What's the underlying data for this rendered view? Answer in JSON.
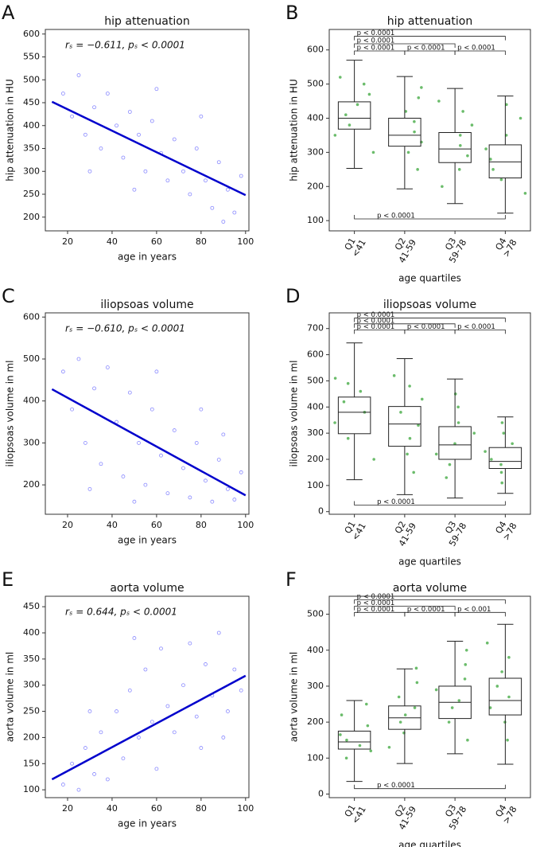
{
  "chart_data": [
    {
      "type": "scatter",
      "panel": "A",
      "title": "hip attenuation",
      "annotation": "rₛ = −0.611, pₛ < 0.0001",
      "xlabel": "age in years",
      "ylabel": "hip attenuation in HU",
      "xlim": [
        10,
        101.5
      ],
      "xticks": [
        20,
        40,
        60,
        80,
        100
      ],
      "ylim": [
        170,
        610
      ],
      "yticks": [
        200,
        250,
        300,
        350,
        400,
        450,
        500,
        550,
        600
      ],
      "color": "#6a6aff",
      "x": [
        18,
        22,
        25,
        28,
        32,
        35,
        38,
        42,
        45,
        48,
        52,
        55,
        58,
        62,
        65,
        68,
        72,
        75,
        78,
        82,
        85,
        88,
        92,
        95,
        98,
        30,
        60,
        80,
        50,
        90
      ],
      "y": [
        470,
        420,
        510,
        380,
        440,
        350,
        470,
        400,
        330,
        430,
        380,
        300,
        410,
        340,
        280,
        370,
        300,
        250,
        350,
        280,
        220,
        320,
        260,
        210,
        290,
        300,
        480,
        420,
        260,
        190
      ],
      "fit": {
        "x": [
          13,
          100
        ],
        "y": [
          452,
          248
        ],
        "color": "#0000cc"
      }
    },
    {
      "type": "box",
      "panel": "B",
      "title": "hip attenuation",
      "xlabel": "age quartiles",
      "ylabel": "hip attenuation in HU",
      "categories": [
        "Q1",
        "Q2",
        "Q3",
        "Q4"
      ],
      "category_sublabels": [
        "<41",
        "41-59",
        "59-78",
        ">78"
      ],
      "ylim": [
        70,
        660
      ],
      "yticks": [
        100,
        200,
        300,
        400,
        500,
        600
      ],
      "color": "#2ca02c",
      "boxes": [
        {
          "whislo": 253,
          "q1": 368,
          "med": 400,
          "q3": 448,
          "whishi": 570
        },
        {
          "whislo": 193,
          "q1": 318,
          "med": 350,
          "q3": 400,
          "whishi": 522
        },
        {
          "whislo": 150,
          "q1": 270,
          "med": 310,
          "q3": 358,
          "whishi": 487
        },
        {
          "whislo": 122,
          "q1": 225,
          "med": 272,
          "q3": 322,
          "whishi": 465
        }
      ],
      "points": [
        [
          300,
          350,
          380,
          410,
          440,
          470,
          500,
          520
        ],
        [
          250,
          300,
          330,
          360,
          390,
          420,
          460,
          490
        ],
        [
          200,
          250,
          290,
          320,
          350,
          380,
          420,
          450
        ],
        [
          180,
          220,
          250,
          280,
          310,
          350,
          400,
          440
        ]
      ],
      "brackets": [
        {
          "from": "Q1",
          "to": "Q4",
          "y": 640,
          "label": "p < 0.0001"
        },
        {
          "from": "Q1",
          "to": "Q3",
          "y": 618,
          "label": "p < 0.0001"
        },
        {
          "from": "Q1",
          "to": "Q2",
          "y": 597,
          "label": "p < 0.0001"
        },
        {
          "from": "Q2",
          "to": "Q3",
          "y": 597,
          "label": "p < 0.0001"
        },
        {
          "from": "Q3",
          "to": "Q4",
          "y": 597,
          "label": "p < 0.0001"
        },
        {
          "from": "Q1",
          "to": "Q4",
          "y": 105,
          "label": "p < 0.0001"
        }
      ]
    },
    {
      "type": "scatter",
      "panel": "C",
      "title": "iliopsoas volume",
      "annotation": "rₛ = −0.610, pₛ < 0.0001",
      "xlabel": "age in years",
      "ylabel": "iliopsoas volume in ml",
      "xlim": [
        10,
        101.5
      ],
      "xticks": [
        20,
        40,
        60,
        80,
        100
      ],
      "ylim": [
        130,
        610
      ],
      "yticks": [
        200,
        300,
        400,
        500,
        600
      ],
      "color": "#6a6aff",
      "x": [
        18,
        22,
        25,
        28,
        32,
        35,
        38,
        42,
        45,
        48,
        52,
        55,
        58,
        62,
        65,
        68,
        72,
        75,
        78,
        82,
        85,
        88,
        92,
        95,
        98,
        30,
        60,
        80,
        50,
        90
      ],
      "y": [
        470,
        380,
        500,
        300,
        430,
        250,
        480,
        350,
        220,
        420,
        300,
        200,
        380,
        270,
        180,
        330,
        240,
        170,
        300,
        210,
        160,
        260,
        190,
        165,
        230,
        190,
        470,
        380,
        160,
        320
      ],
      "fit": {
        "x": [
          13,
          100
        ],
        "y": [
          428,
          175
        ],
        "color": "#0000cc"
      }
    },
    {
      "type": "box",
      "panel": "D",
      "title": "iliopsoas volume",
      "xlabel": "age quartiles",
      "ylabel": "iliopsoas volume in ml",
      "categories": [
        "Q1",
        "Q2",
        "Q3",
        "Q4"
      ],
      "category_sublabels": [
        "<41",
        "41-59",
        "59-78",
        ">78"
      ],
      "ylim": [
        -10,
        760
      ],
      "yticks": [
        0,
        100,
        200,
        300,
        400,
        500,
        600,
        700
      ],
      "color": "#2ca02c",
      "boxes": [
        {
          "whislo": 122,
          "q1": 298,
          "med": 380,
          "q3": 438,
          "whishi": 645
        },
        {
          "whislo": 65,
          "q1": 250,
          "med": 335,
          "q3": 402,
          "whishi": 585
        },
        {
          "whislo": 52,
          "q1": 200,
          "med": 255,
          "q3": 325,
          "whishi": 507
        },
        {
          "whislo": 70,
          "q1": 165,
          "med": 192,
          "q3": 245,
          "whishi": 362
        }
      ],
      "points": [
        [
          200,
          280,
          340,
          380,
          420,
          460,
          490,
          510
        ],
        [
          150,
          220,
          280,
          330,
          380,
          430,
          480,
          520
        ],
        [
          130,
          180,
          220,
          260,
          300,
          340,
          400,
          450
        ],
        [
          110,
          150,
          180,
          200,
          230,
          260,
          300,
          340
        ]
      ],
      "brackets": [
        {
          "from": "Q1",
          "to": "Q4",
          "y": 740,
          "label": "p < 0.0001"
        },
        {
          "from": "Q1",
          "to": "Q3",
          "y": 718,
          "label": "p < 0.0001"
        },
        {
          "from": "Q1",
          "to": "Q2",
          "y": 695,
          "label": "p < 0.0001"
        },
        {
          "from": "Q2",
          "to": "Q3",
          "y": 695,
          "label": "p < 0.0001"
        },
        {
          "from": "Q3",
          "to": "Q4",
          "y": 695,
          "label": "p < 0.0001"
        },
        {
          "from": "Q1",
          "to": "Q4",
          "y": 25,
          "label": "p < 0.0001"
        }
      ]
    },
    {
      "type": "scatter",
      "panel": "E",
      "title": "aorta volume",
      "annotation": "rₛ = 0.644, pₛ < 0.0001",
      "xlabel": "age in years",
      "ylabel": "aorta volume in ml",
      "xlim": [
        10,
        101.5
      ],
      "xticks": [
        20,
        40,
        60,
        80,
        100
      ],
      "ylim": [
        85,
        470
      ],
      "yticks": [
        100,
        150,
        200,
        250,
        300,
        350,
        400,
        450
      ],
      "color": "#6a6aff",
      "x": [
        18,
        22,
        25,
        28,
        32,
        35,
        38,
        42,
        45,
        48,
        52,
        55,
        58,
        62,
        65,
        68,
        72,
        75,
        78,
        82,
        85,
        88,
        92,
        95,
        98,
        30,
        60,
        80,
        50,
        90
      ],
      "y": [
        110,
        150,
        100,
        180,
        130,
        210,
        120,
        250,
        160,
        290,
        200,
        330,
        230,
        370,
        260,
        210,
        300,
        380,
        240,
        340,
        280,
        400,
        250,
        330,
        290,
        250,
        140,
        180,
        390,
        200
      ],
      "fit": {
        "x": [
          13,
          100
        ],
        "y": [
          120,
          318
        ],
        "color": "#0000cc"
      }
    },
    {
      "type": "box",
      "panel": "F",
      "title": "aorta volume",
      "xlabel": "age quartiles",
      "ylabel": "aorta volume in ml",
      "categories": [
        "Q1",
        "Q2",
        "Q3",
        "Q4"
      ],
      "category_sublabels": [
        "<41",
        "41-59",
        "59-78",
        ">78"
      ],
      "ylim": [
        -10,
        550
      ],
      "yticks": [
        0,
        100,
        200,
        300,
        400,
        500
      ],
      "color": "#2ca02c",
      "boxes": [
        {
          "whislo": 35,
          "q1": 125,
          "med": 145,
          "q3": 175,
          "whishi": 260
        },
        {
          "whislo": 85,
          "q1": 180,
          "med": 212,
          "q3": 245,
          "whishi": 348
        },
        {
          "whislo": 112,
          "q1": 210,
          "med": 255,
          "q3": 300,
          "whishi": 425
        },
        {
          "whislo": 83,
          "q1": 220,
          "med": 260,
          "q3": 322,
          "whishi": 472
        }
      ],
      "points": [
        [
          100,
          120,
          135,
          150,
          165,
          190,
          220,
          250
        ],
        [
          130,
          170,
          200,
          220,
          240,
          270,
          310,
          350
        ],
        [
          150,
          200,
          240,
          260,
          290,
          320,
          360,
          400
        ],
        [
          150,
          200,
          240,
          270,
          300,
          340,
          380,
          420
        ]
      ],
      "brackets": [
        {
          "from": "Q1",
          "to": "Q4",
          "y": 540,
          "label": "p < 0.0001"
        },
        {
          "from": "Q1",
          "to": "Q3",
          "y": 522,
          "label": "p < 0.0001"
        },
        {
          "from": "Q1",
          "to": "Q2",
          "y": 505,
          "label": "p < 0.0001"
        },
        {
          "from": "Q2",
          "to": "Q3",
          "y": 505,
          "label": "p < 0.0001"
        },
        {
          "from": "Q3",
          "to": "Q4",
          "y": 505,
          "label": "p < 0.001"
        },
        {
          "from": "Q1",
          "to": "Q4",
          "y": 15,
          "label": "p < 0.0001"
        }
      ]
    }
  ]
}
